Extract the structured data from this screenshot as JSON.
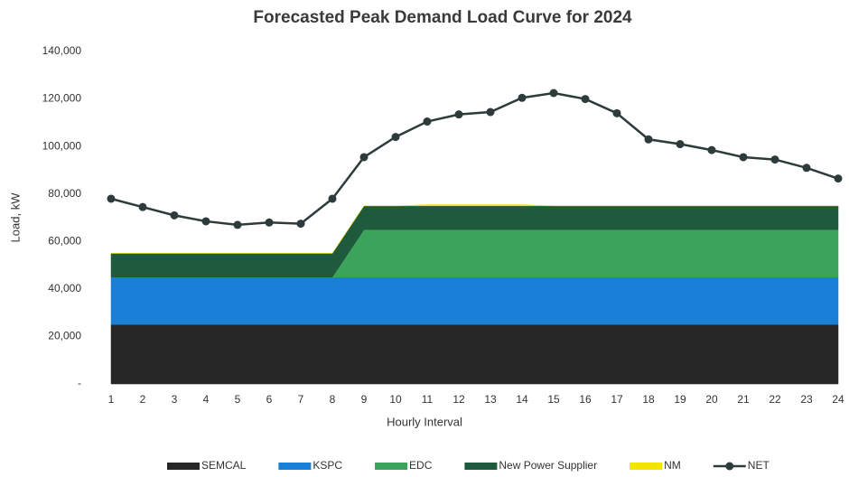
{
  "chart_data": {
    "type": "stacked-area-line",
    "title": "Forecasted Peak Demand Load Curve for 2024",
    "x_label": "Hourly Interval",
    "y_label": "Load, kW",
    "categories": [
      "1",
      "2",
      "3",
      "4",
      "5",
      "6",
      "7",
      "8",
      "9",
      "10",
      "11",
      "12",
      "13",
      "14",
      "15",
      "16",
      "17",
      "18",
      "19",
      "20",
      "21",
      "22",
      "23",
      "24"
    ],
    "ylim": [
      0,
      140000
    ],
    "yticks": [
      {
        "value": 0,
        "label": "-"
      },
      {
        "value": 20000,
        "label": "20,000"
      },
      {
        "value": 40000,
        "label": "40,000"
      },
      {
        "value": 60000,
        "label": "60,000"
      },
      {
        "value": 80000,
        "label": "80,000"
      },
      {
        "value": 100000,
        "label": "100,000"
      },
      {
        "value": 120000,
        "label": "120,000"
      },
      {
        "value": 140000,
        "label": "140,000"
      }
    ],
    "grid": false,
    "legend": "bottom",
    "series": [
      {
        "name": "SEMCAL",
        "kind": "area",
        "color": "#262626",
        "values": [
          25000,
          25000,
          25000,
          25000,
          25000,
          25000,
          25000,
          25000,
          25000,
          25000,
          25000,
          25000,
          25000,
          25000,
          25000,
          25000,
          25000,
          25000,
          25000,
          25000,
          25000,
          25000,
          25000,
          25000
        ]
      },
      {
        "name": "KSPC",
        "kind": "area",
        "color": "#1a7fd6",
        "values": [
          20000,
          20000,
          20000,
          20000,
          20000,
          20000,
          20000,
          20000,
          20000,
          20000,
          20000,
          20000,
          20000,
          20000,
          20000,
          20000,
          20000,
          20000,
          20000,
          20000,
          20000,
          20000,
          20000,
          20000
        ]
      },
      {
        "name": "EDC",
        "kind": "area",
        "color": "#3ba35c",
        "values": [
          0,
          0,
          0,
          0,
          0,
          0,
          0,
          0,
          20000,
          20000,
          20000,
          20000,
          20000,
          20000,
          20000,
          20000,
          20000,
          20000,
          20000,
          20000,
          20000,
          20000,
          20000,
          20000
        ]
      },
      {
        "name": "New Power Supplier",
        "kind": "area",
        "color": "#1f5a3c",
        "values": [
          10000,
          10000,
          10000,
          10000,
          10000,
          10000,
          10000,
          10000,
          10000,
          10000,
          10000,
          10000,
          10000,
          10000,
          10000,
          10000,
          10000,
          10000,
          10000,
          10000,
          10000,
          10000,
          10000,
          10000
        ]
      },
      {
        "name": "NM",
        "kind": "area",
        "color": "#f2e600",
        "values": [
          0,
          0,
          0,
          0,
          0,
          0,
          0,
          0,
          0,
          0,
          500,
          500,
          500,
          500,
          0,
          0,
          0,
          0,
          0,
          0,
          0,
          0,
          0,
          0
        ]
      },
      {
        "name": "NET",
        "kind": "line",
        "color": "#2d3b3b",
        "values": [
          78000,
          74500,
          71000,
          68500,
          67000,
          68000,
          67500,
          78000,
          95500,
          104000,
          110500,
          113500,
          114500,
          120500,
          122500,
          120000,
          114000,
          103000,
          101000,
          98500,
          95500,
          94500,
          91000,
          86500
        ]
      }
    ]
  }
}
